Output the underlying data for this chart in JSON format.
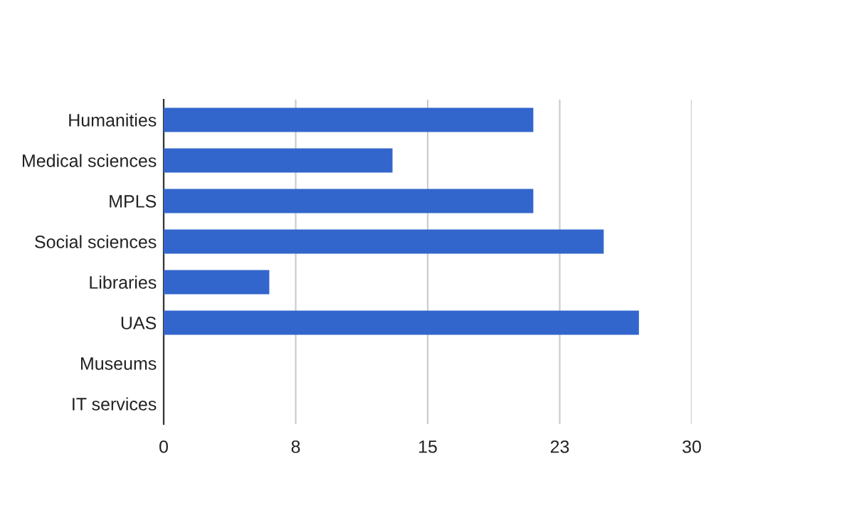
{
  "chart_data": {
    "type": "bar",
    "orientation": "horizontal",
    "categories": [
      "Humanities",
      "Medical sciences",
      "MPLS",
      "Social sciences",
      "Libraries",
      "UAS",
      "Museums",
      "IT services"
    ],
    "values": [
      21,
      13,
      21,
      25,
      6,
      27,
      0,
      0
    ],
    "color": "#3366cc",
    "xlim": [
      0,
      30
    ],
    "xticks": [
      0,
      {
        "value": 7.5,
        "label": "8"
      },
      15,
      {
        "value": 22.5,
        "label": "23"
      },
      30
    ],
    "grid": "x",
    "legend": false
  }
}
